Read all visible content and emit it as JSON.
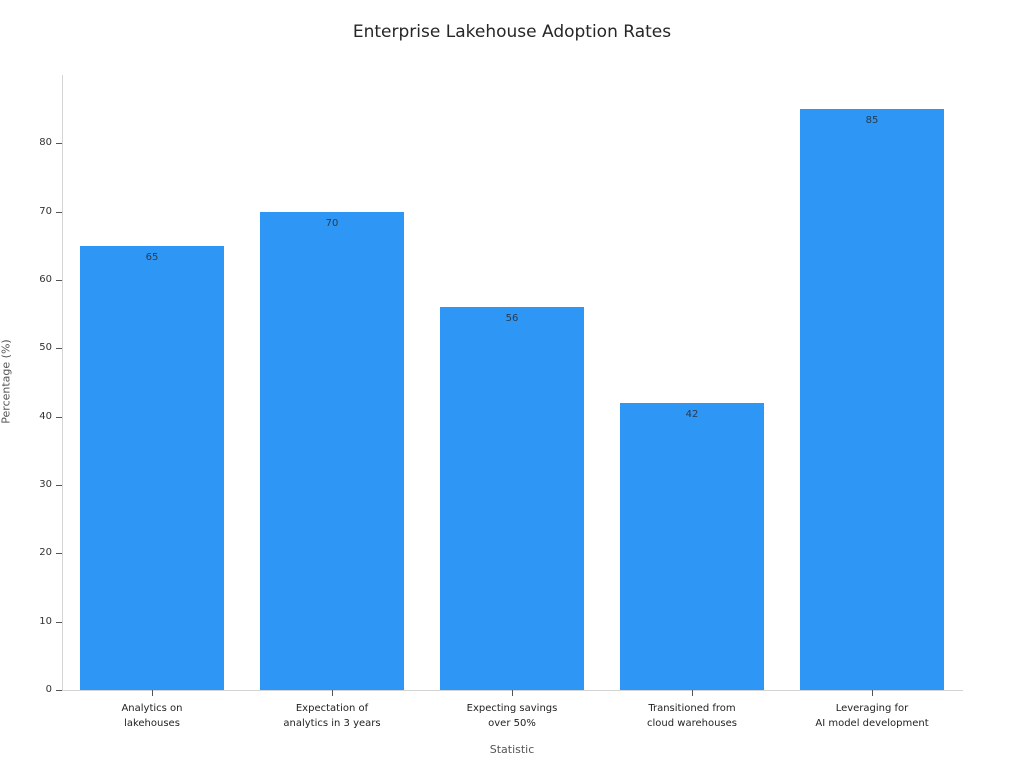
{
  "chart_data": {
    "type": "bar",
    "title": "Enterprise Lakehouse Adoption Rates",
    "xlabel": "Statistic",
    "ylabel": "Percentage (%)",
    "categories": [
      "Analytics on\nlakehouses",
      "Expectation of\nanalytics in 3 years",
      "Expecting savings\nover 50%",
      "Transitioned from\ncloud warehouses",
      "Leveraging for\nAI model development"
    ],
    "values": [
      65,
      70,
      56,
      42,
      85
    ],
    "ylim": [
      0,
      90
    ],
    "yticks": [
      0,
      10,
      20,
      30,
      40,
      50,
      60,
      70,
      80
    ],
    "bar_color": "#2E96F5",
    "grid": false,
    "legend": "none"
  }
}
